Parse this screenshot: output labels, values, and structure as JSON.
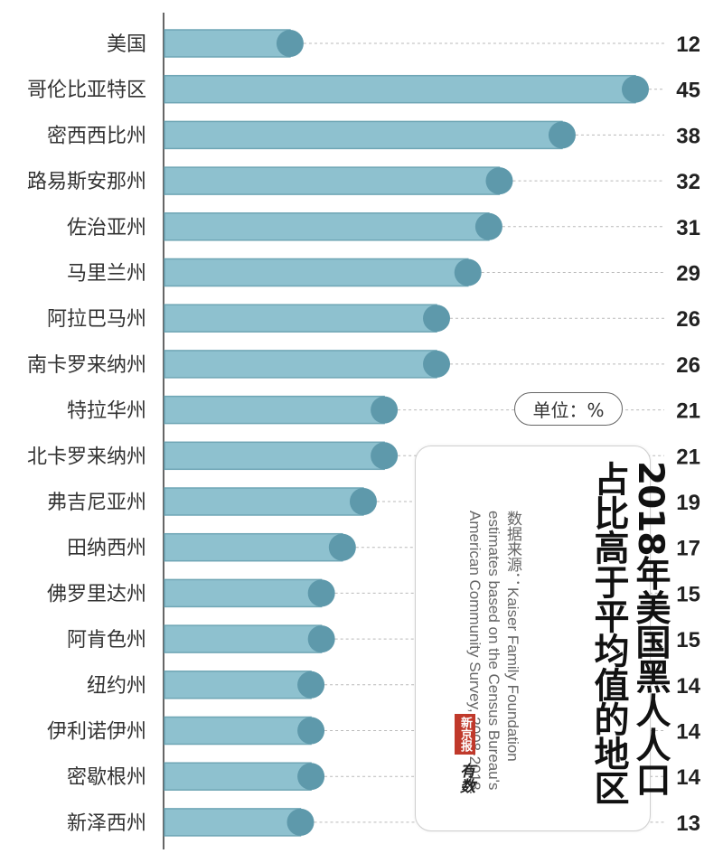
{
  "chart_data": {
    "type": "bar",
    "orientation": "horizontal",
    "title": "2018年美国黑人人口占比高于平均值的地区",
    "unit_label": "单位：%",
    "source": "数据来源：Kaiser Family Foundation estimates based on the Census Bureau's American Community Survey, 2008-2018.",
    "categories": [
      "美国",
      "哥伦比亚特区",
      "密西西比州",
      "路易斯安那州",
      "佐治亚州",
      "马里兰州",
      "阿拉巴马州",
      "南卡罗来纳州",
      "特拉华州",
      "北卡罗来纳州",
      "弗吉尼亚州",
      "田纳西州",
      "佛罗里达州",
      "阿肯色州",
      "纽约州",
      "伊利诺伊州",
      "密歇根州",
      "新泽西州"
    ],
    "values": [
      12,
      45,
      38,
      32,
      31,
      29,
      26,
      26,
      21,
      21,
      19,
      17,
      15,
      15,
      14,
      14,
      14,
      13
    ],
    "value_labels": [
      "12",
      "45",
      "38",
      "32",
      "31",
      "29",
      "26",
      "26",
      "21",
      "21",
      "19",
      "17",
      "15",
      "15",
      "14",
      "14",
      "14",
      "13"
    ],
    "xlim": [
      0,
      45
    ],
    "grid": false,
    "colors": {
      "bar": "#8ec1cf",
      "bar_edge": "#6fa6b5",
      "knob": "#5e99ab",
      "leader": "#b9b9b9"
    }
  },
  "logo": {
    "label": "新京报",
    "script": "有数"
  }
}
